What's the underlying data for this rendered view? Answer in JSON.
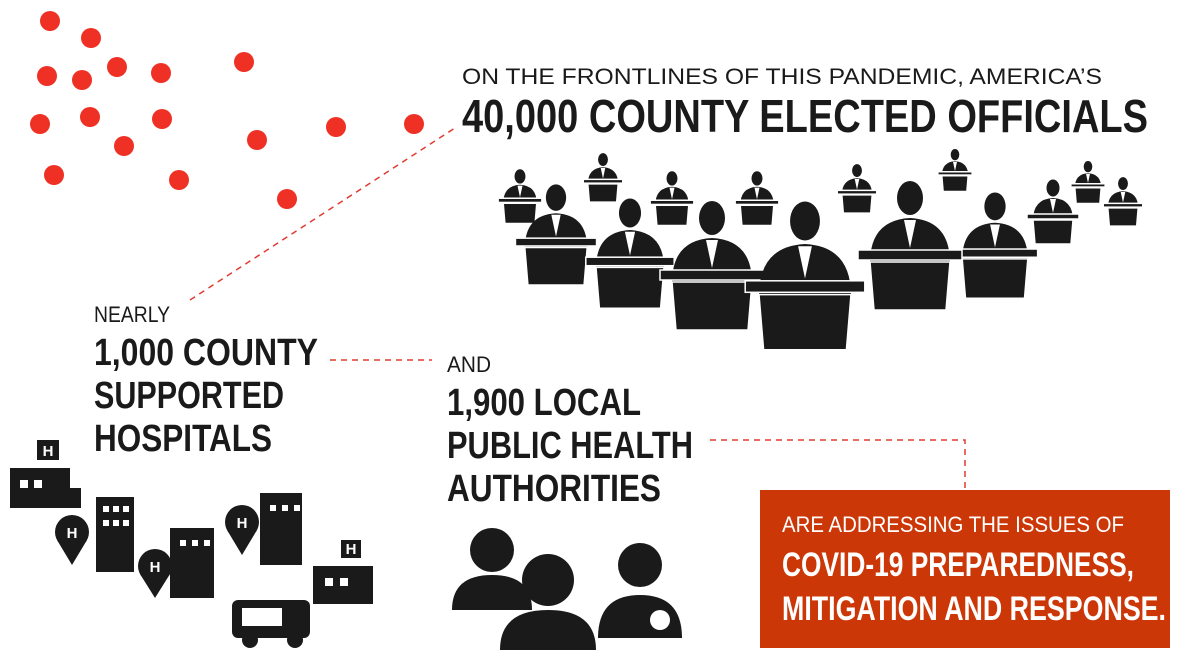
{
  "headline": {
    "intro": "ON THE FRONTLINES OF THIS PANDEMIC, AMERICA’S",
    "main": "40,000 COUNTY ELECTED OFFICIALS"
  },
  "hospitals": {
    "intro": "NEARLY",
    "lines": [
      "1,000 COUNTY",
      "SUPPORTED",
      "HOSPITALS"
    ],
    "icon_letter": "H"
  },
  "health": {
    "intro": "AND",
    "lines": [
      "1,900 LOCAL",
      "PUBLIC HEALTH",
      "AUTHORITIES"
    ]
  },
  "callout": {
    "intro": "ARE ADDRESSING THE ISSUES OF",
    "lines": [
      "COVID-19 PREPAREDNESS,",
      "MITIGATION AND RESPONSE."
    ]
  }
}
